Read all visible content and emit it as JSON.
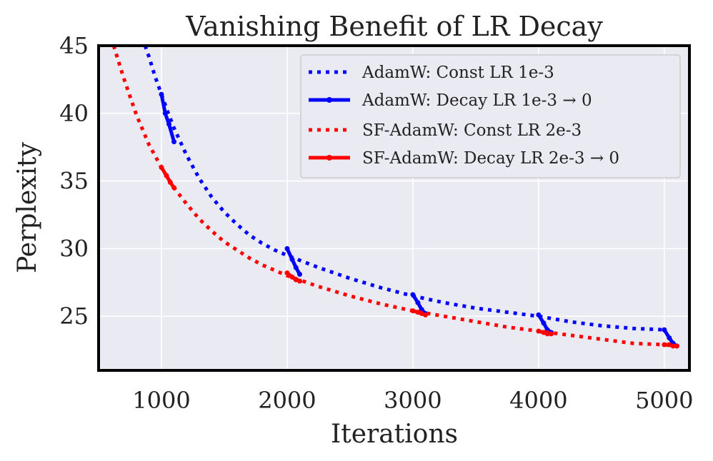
{
  "chart_data": {
    "type": "line",
    "title": "Vanishing Benefit of LR Decay",
    "xlabel": "Iterations",
    "ylabel": "Perplexity",
    "xlim": [
      500,
      5200
    ],
    "ylim": [
      21,
      45
    ],
    "xticks": [
      1000,
      2000,
      3000,
      4000,
      5000
    ],
    "yticks": [
      25,
      30,
      35,
      40,
      45
    ],
    "xtick_labels": [
      "1000",
      "2000",
      "3000",
      "4000",
      "5000"
    ],
    "ytick_labels": [
      "25",
      "30",
      "35",
      "40",
      "45"
    ],
    "grid": true,
    "legend_position": "top-right",
    "colors": {
      "adamw": "#0000ff",
      "sf_adamw": "#ff0000",
      "background": "#eaeaf2",
      "frame": "#000000"
    },
    "series": [
      {
        "name": "AdamW: Const LR 1e-3",
        "color": "#0000ff",
        "style": "dotted",
        "x": [
          870,
          900,
          950,
          1000,
          1050,
          1100,
          1200,
          1300,
          1400,
          1500,
          1600,
          1700,
          1800,
          1900,
          2000,
          2250,
          2500,
          2750,
          3000,
          3250,
          3500,
          3750,
          4000,
          4250,
          4500,
          4750,
          5000
        ],
        "y": [
          45,
          44.2,
          42.7,
          41.4,
          40.1,
          38.9,
          36.9,
          35.2,
          33.8,
          32.7,
          31.8,
          31.0,
          30.4,
          29.9,
          29.5,
          28.6,
          27.8,
          27.1,
          26.5,
          26.0,
          25.6,
          25.3,
          25.0,
          24.6,
          24.3,
          24.1,
          24.0
        ]
      },
      {
        "name": "AdamW: Decay LR 1e-3 → 0",
        "color": "#0000ff",
        "style": "solid",
        "segments": [
          {
            "x": [
              1000,
              1030,
              1060,
              1100
            ],
            "y": [
              41.4,
              40.0,
              39.2,
              37.9
            ]
          },
          {
            "x": [
              2000,
              2040,
              2070,
              2100
            ],
            "y": [
              30.0,
              29.2,
              28.6,
              28.1
            ]
          },
          {
            "x": [
              3000,
              3040,
              3070,
              3100
            ],
            "y": [
              26.6,
              26.0,
              25.5,
              25.2
            ]
          },
          {
            "x": [
              4000,
              4040,
              4070,
              4100
            ],
            "y": [
              25.1,
              24.5,
              24.0,
              23.8
            ]
          },
          {
            "x": [
              5000,
              5040,
              5070,
              5100
            ],
            "y": [
              24.0,
              23.4,
              23.0,
              22.8
            ]
          }
        ]
      },
      {
        "name": "SF-AdamW: Const LR 2e-3",
        "color": "#ff0000",
        "style": "dotted",
        "x": [
          620,
          700,
          800,
          900,
          1000,
          1100,
          1200,
          1300,
          1400,
          1500,
          1600,
          1700,
          1800,
          1900,
          2000,
          2250,
          2500,
          2750,
          3000,
          3250,
          3500,
          3750,
          4000,
          4250,
          4500,
          4750,
          5000,
          5100
        ],
        "y": [
          45,
          42.6,
          39.9,
          37.7,
          36.0,
          34.5,
          33.3,
          32.2,
          31.3,
          30.5,
          29.9,
          29.3,
          28.8,
          28.4,
          28.0,
          27.2,
          26.5,
          25.9,
          25.4,
          25.0,
          24.6,
          24.2,
          23.9,
          23.6,
          23.3,
          23.0,
          22.9,
          22.8
        ]
      },
      {
        "name": "SF-AdamW: Decay LR 2e-3 → 0",
        "color": "#ff0000",
        "style": "solid",
        "segments": [
          {
            "x": [
              1000,
              1040,
              1070,
              1100
            ],
            "y": [
              36.0,
              35.4,
              34.9,
              34.5
            ]
          },
          {
            "x": [
              2000,
              2040,
              2070,
              2100
            ],
            "y": [
              28.2,
              27.9,
              27.7,
              27.6
            ]
          },
          {
            "x": [
              3000,
              3040,
              3070,
              3100
            ],
            "y": [
              25.4,
              25.3,
              25.2,
              25.1
            ]
          },
          {
            "x": [
              4000,
              4040,
              4070,
              4100
            ],
            "y": [
              23.9,
              23.8,
              23.7,
              23.7
            ]
          },
          {
            "x": [
              5000,
              5040,
              5070,
              5100
            ],
            "y": [
              22.9,
              22.9,
              22.8,
              22.8
            ]
          }
        ]
      }
    ]
  }
}
